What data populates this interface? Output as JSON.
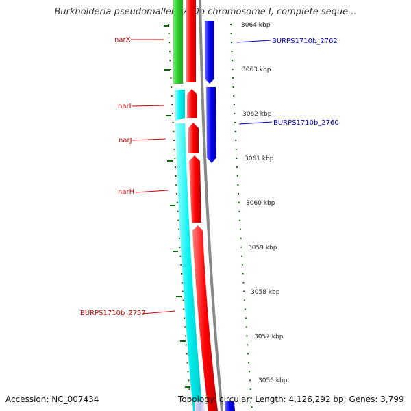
{
  "header": {
    "title": "Burkholderia pseudomallei 1710b chromosome I, complete seque..."
  },
  "footer": {
    "accession": "Accession: NC_007434",
    "summary": "Topology: circular; Length: 4,126,292 bp; Genes: 3,799"
  },
  "ruler": {
    "unit": "kbp",
    "labels": [
      "3064 kbp",
      "3063 kbp",
      "3062 kbp",
      "3061 kbp",
      "3060 kbp",
      "3059 kbp",
      "3058 kbp",
      "3057 kbp",
      "3056 kbp"
    ]
  },
  "gene_labels": {
    "reverse": [
      "narX",
      "narI",
      "narJ",
      "narH",
      "BURPS1710b_2757"
    ],
    "forward": [
      "BURPS1710b_2762",
      "BURPS1710b_2760"
    ]
  },
  "colors": {
    "reverse_label": "#cc0000",
    "forward_label": "#0000cc",
    "tick": "#006600",
    "ruler_text": "#222222",
    "green_feature": "#33cc33",
    "cyan_feature": "#00ffff",
    "red_feature": "#ff0000",
    "blue_feature": "#0000ee",
    "backbone": "#888888"
  }
}
